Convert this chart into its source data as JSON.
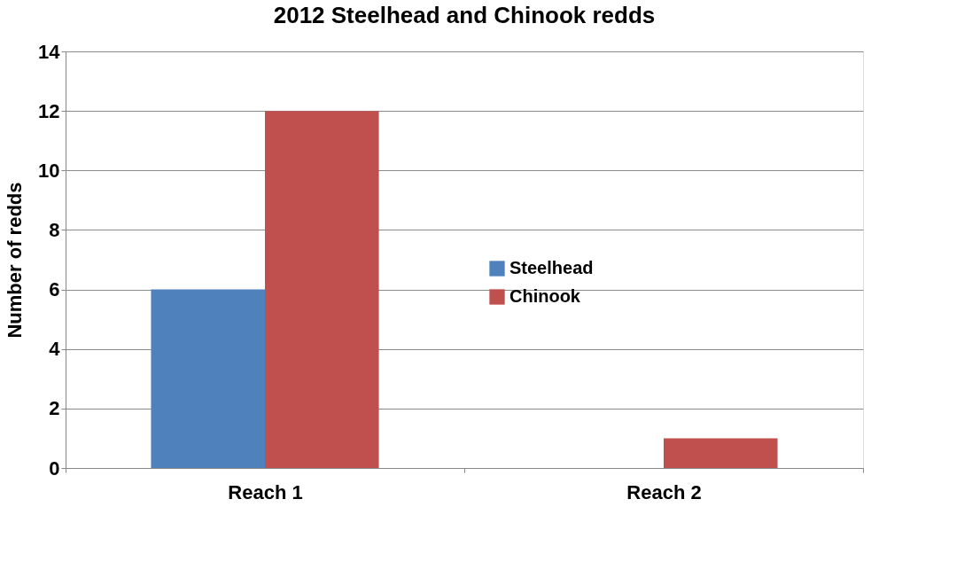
{
  "chart_data": {
    "type": "bar",
    "title": "2012 Steelhead and Chinook redds",
    "ylabel": "Number of redds",
    "categories": [
      "Reach 1",
      "Reach 2"
    ],
    "series": [
      {
        "name": "Steelhead",
        "color": "#4f81bd",
        "values": [
          6,
          0
        ]
      },
      {
        "name": "Chinook",
        "color": "#c0504d",
        "values": [
          12,
          1
        ]
      }
    ],
    "ylim": [
      0,
      14
    ],
    "yticks": [
      0,
      2,
      4,
      6,
      8,
      10,
      12,
      14
    ],
    "grid": "y",
    "legend": "right"
  }
}
